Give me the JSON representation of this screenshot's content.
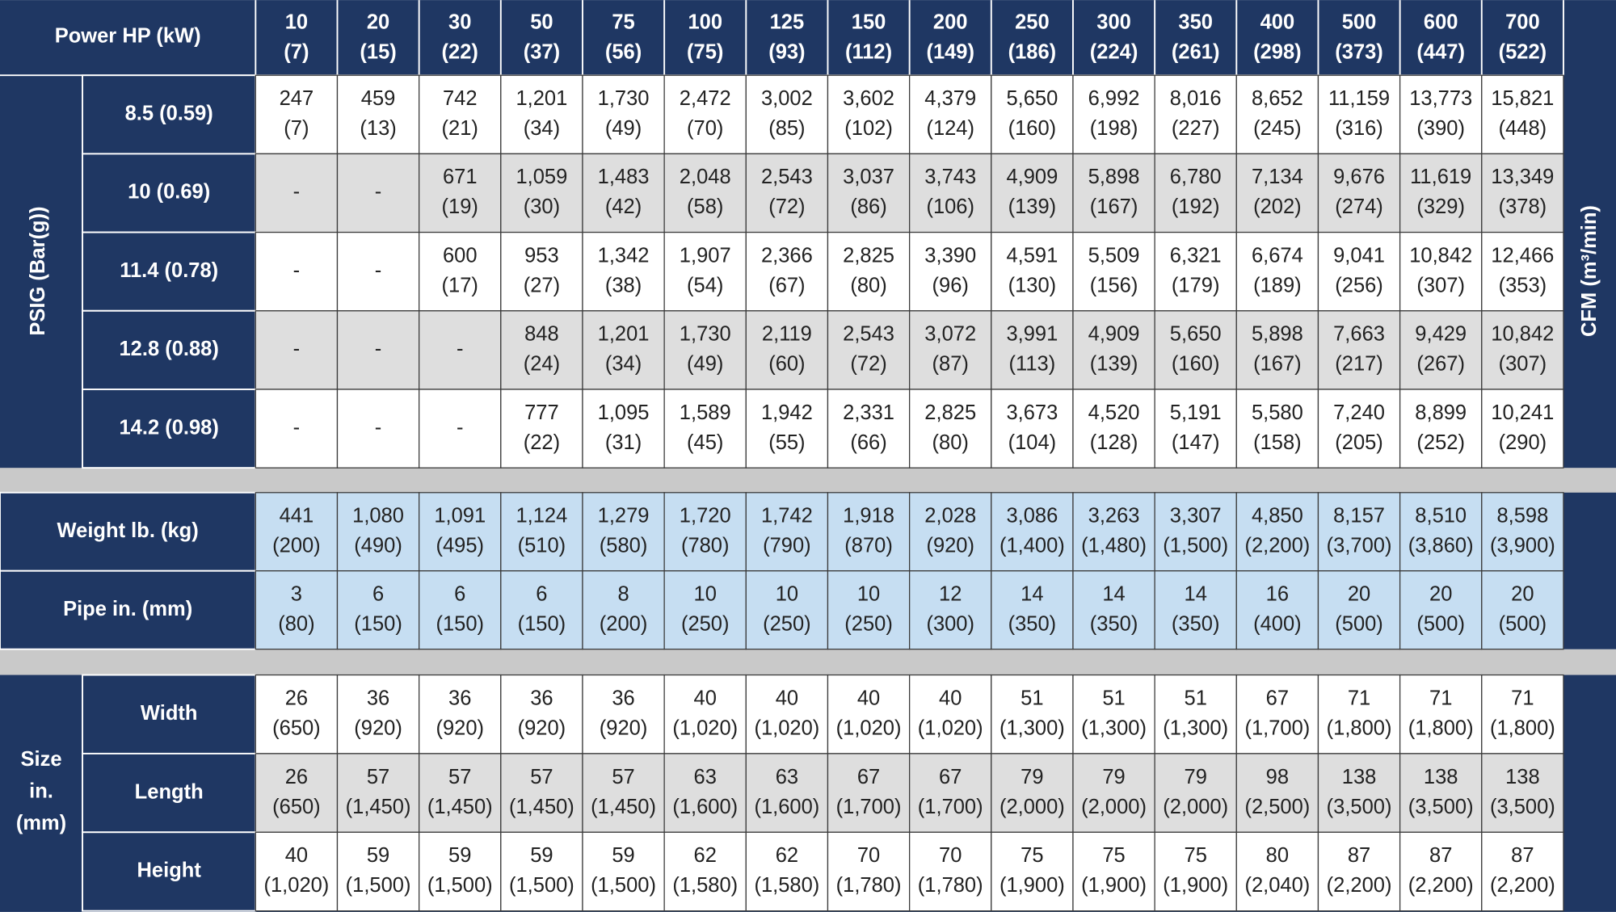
{
  "header": {
    "title": "Power HP (kW)",
    "columns": [
      [
        "10",
        "(7)"
      ],
      [
        "20",
        "(15)"
      ],
      [
        "30",
        "(22)"
      ],
      [
        "50",
        "(37)"
      ],
      [
        "75",
        "(56)"
      ],
      [
        "100",
        "(75)"
      ],
      [
        "125",
        "(93)"
      ],
      [
        "150",
        "(112)"
      ],
      [
        "200",
        "(149)"
      ],
      [
        "250",
        "(186)"
      ],
      [
        "300",
        "(224)"
      ],
      [
        "350",
        "(261)"
      ],
      [
        "400",
        "(298)"
      ],
      [
        "500",
        "(373)"
      ],
      [
        "600",
        "(447)"
      ],
      [
        "700",
        "(522)"
      ]
    ]
  },
  "pressure": {
    "label": "PSIG (Bar(g))",
    "unit": "CFM (m³/min)",
    "rows": [
      {
        "label": "8.5 (0.59)",
        "cells": [
          [
            "247",
            "(7)"
          ],
          [
            "459",
            "(13)"
          ],
          [
            "742",
            "(21)"
          ],
          [
            "1,201",
            "(34)"
          ],
          [
            "1,730",
            "(49)"
          ],
          [
            "2,472",
            "(70)"
          ],
          [
            "3,002",
            "(85)"
          ],
          [
            "3,602",
            "(102)"
          ],
          [
            "4,379",
            "(124)"
          ],
          [
            "5,650",
            "(160)"
          ],
          [
            "6,992",
            "(198)"
          ],
          [
            "8,016",
            "(227)"
          ],
          [
            "8,652",
            "(245)"
          ],
          [
            "11,159",
            "(316)"
          ],
          [
            "13,773",
            "(390)"
          ],
          [
            "15,821",
            "(448)"
          ]
        ]
      },
      {
        "label": "10 (0.69)",
        "cells": [
          [
            "-"
          ],
          [
            "-"
          ],
          [
            "671",
            "(19)"
          ],
          [
            "1,059",
            "(30)"
          ],
          [
            "1,483",
            "(42)"
          ],
          [
            "2,048",
            "(58)"
          ],
          [
            "2,543",
            "(72)"
          ],
          [
            "3,037",
            "(86)"
          ],
          [
            "3,743",
            "(106)"
          ],
          [
            "4,909",
            "(139)"
          ],
          [
            "5,898",
            "(167)"
          ],
          [
            "6,780",
            "(192)"
          ],
          [
            "7,134",
            "(202)"
          ],
          [
            "9,676",
            "(274)"
          ],
          [
            "11,619",
            "(329)"
          ],
          [
            "13,349",
            "(378)"
          ]
        ]
      },
      {
        "label": "11.4 (0.78)",
        "cells": [
          [
            "-"
          ],
          [
            "-"
          ],
          [
            "600",
            "(17)"
          ],
          [
            "953",
            "(27)"
          ],
          [
            "1,342",
            "(38)"
          ],
          [
            "1,907",
            "(54)"
          ],
          [
            "2,366",
            "(67)"
          ],
          [
            "2,825",
            "(80)"
          ],
          [
            "3,390",
            "(96)"
          ],
          [
            "4,591",
            "(130)"
          ],
          [
            "5,509",
            "(156)"
          ],
          [
            "6,321",
            "(179)"
          ],
          [
            "6,674",
            "(189)"
          ],
          [
            "9,041",
            "(256)"
          ],
          [
            "10,842",
            "(307)"
          ],
          [
            "12,466",
            "(353)"
          ]
        ]
      },
      {
        "label": "12.8 (0.88)",
        "cells": [
          [
            "-"
          ],
          [
            "-"
          ],
          [
            "-"
          ],
          [
            "848",
            "(24)"
          ],
          [
            "1,201",
            "(34)"
          ],
          [
            "1,730",
            "(49)"
          ],
          [
            "2,119",
            "(60)"
          ],
          [
            "2,543",
            "(72)"
          ],
          [
            "3,072",
            "(87)"
          ],
          [
            "3,991",
            "(113)"
          ],
          [
            "4,909",
            "(139)"
          ],
          [
            "5,650",
            "(160)"
          ],
          [
            "5,898",
            "(167)"
          ],
          [
            "7,663",
            "(217)"
          ],
          [
            "9,429",
            "(267)"
          ],
          [
            "10,842",
            "(307)"
          ]
        ]
      },
      {
        "label": "14.2 (0.98)",
        "cells": [
          [
            "-"
          ],
          [
            "-"
          ],
          [
            "-"
          ],
          [
            "777",
            "(22)"
          ],
          [
            "1,095",
            "(31)"
          ],
          [
            "1,589",
            "(45)"
          ],
          [
            "1,942",
            "(55)"
          ],
          [
            "2,331",
            "(66)"
          ],
          [
            "2,825",
            "(80)"
          ],
          [
            "3,673",
            "(104)"
          ],
          [
            "4,520",
            "(128)"
          ],
          [
            "5,191",
            "(147)"
          ],
          [
            "5,580",
            "(158)"
          ],
          [
            "7,240",
            "(205)"
          ],
          [
            "8,899",
            "(252)"
          ],
          [
            "10,241",
            "(290)"
          ]
        ]
      }
    ]
  },
  "specs": {
    "rows": [
      {
        "label": "Weight lb. (kg)",
        "cells": [
          [
            "441",
            "(200)"
          ],
          [
            "1,080",
            "(490)"
          ],
          [
            "1,091",
            "(495)"
          ],
          [
            "1,124",
            "(510)"
          ],
          [
            "1,279",
            "(580)"
          ],
          [
            "1,720",
            "(780)"
          ],
          [
            "1,742",
            "(790)"
          ],
          [
            "1,918",
            "(870)"
          ],
          [
            "2,028",
            "(920)"
          ],
          [
            "3,086",
            "(1,400)"
          ],
          [
            "3,263",
            "(1,480)"
          ],
          [
            "3,307",
            "(1,500)"
          ],
          [
            "4,850",
            "(2,200)"
          ],
          [
            "8,157",
            "(3,700)"
          ],
          [
            "8,510",
            "(3,860)"
          ],
          [
            "8,598",
            "(3,900)"
          ]
        ]
      },
      {
        "label": "Pipe in. (mm)",
        "cells": [
          [
            "3",
            "(80)"
          ],
          [
            "6",
            "(150)"
          ],
          [
            "6",
            "(150)"
          ],
          [
            "6",
            "(150)"
          ],
          [
            "8",
            "(200)"
          ],
          [
            "10",
            "(250)"
          ],
          [
            "10",
            "(250)"
          ],
          [
            "10",
            "(250)"
          ],
          [
            "12",
            "(300)"
          ],
          [
            "14",
            "(350)"
          ],
          [
            "14",
            "(350)"
          ],
          [
            "14",
            "(350)"
          ],
          [
            "16",
            "(400)"
          ],
          [
            "20",
            "(500)"
          ],
          [
            "20",
            "(500)"
          ],
          [
            "20",
            "(500)"
          ]
        ]
      }
    ]
  },
  "size": {
    "label": [
      "Size",
      "in.",
      "(mm)"
    ],
    "rows": [
      {
        "label": "Width",
        "cells": [
          [
            "26",
            "(650)"
          ],
          [
            "36",
            "(920)"
          ],
          [
            "36",
            "(920)"
          ],
          [
            "36",
            "(920)"
          ],
          [
            "36",
            "(920)"
          ],
          [
            "40",
            "(1,020)"
          ],
          [
            "40",
            "(1,020)"
          ],
          [
            "40",
            "(1,020)"
          ],
          [
            "40",
            "(1,020)"
          ],
          [
            "51",
            "(1,300)"
          ],
          [
            "51",
            "(1,300)"
          ],
          [
            "51",
            "(1,300)"
          ],
          [
            "67",
            "(1,700)"
          ],
          [
            "71",
            "(1,800)"
          ],
          [
            "71",
            "(1,800)"
          ],
          [
            "71",
            "(1,800)"
          ]
        ]
      },
      {
        "label": "Length",
        "cells": [
          [
            "26",
            "(650)"
          ],
          [
            "57",
            "(1,450)"
          ],
          [
            "57",
            "(1,450)"
          ],
          [
            "57",
            "(1,450)"
          ],
          [
            "57",
            "(1,450)"
          ],
          [
            "63",
            "(1,600)"
          ],
          [
            "63",
            "(1,600)"
          ],
          [
            "67",
            "(1,700)"
          ],
          [
            "67",
            "(1,700)"
          ],
          [
            "79",
            "(2,000)"
          ],
          [
            "79",
            "(2,000)"
          ],
          [
            "79",
            "(2,000)"
          ],
          [
            "98",
            "(2,500)"
          ],
          [
            "138",
            "(3,500)"
          ],
          [
            "138",
            "(3,500)"
          ],
          [
            "138",
            "(3,500)"
          ]
        ]
      },
      {
        "label": "Height",
        "cells": [
          [
            "40",
            "(1,020)"
          ],
          [
            "59",
            "(1,500)"
          ],
          [
            "59",
            "(1,500)"
          ],
          [
            "59",
            "(1,500)"
          ],
          [
            "59",
            "(1,500)"
          ],
          [
            "62",
            "(1,580)"
          ],
          [
            "62",
            "(1,580)"
          ],
          [
            "70",
            "(1,780)"
          ],
          [
            "70",
            "(1,780)"
          ],
          [
            "75",
            "(1,900)"
          ],
          [
            "75",
            "(1,900)"
          ],
          [
            "75",
            "(1,900)"
          ],
          [
            "80",
            "(2,040)"
          ],
          [
            "87",
            "(2,200)"
          ],
          [
            "87",
            "(2,200)"
          ],
          [
            "87",
            "(2,200)"
          ]
        ]
      }
    ]
  }
}
